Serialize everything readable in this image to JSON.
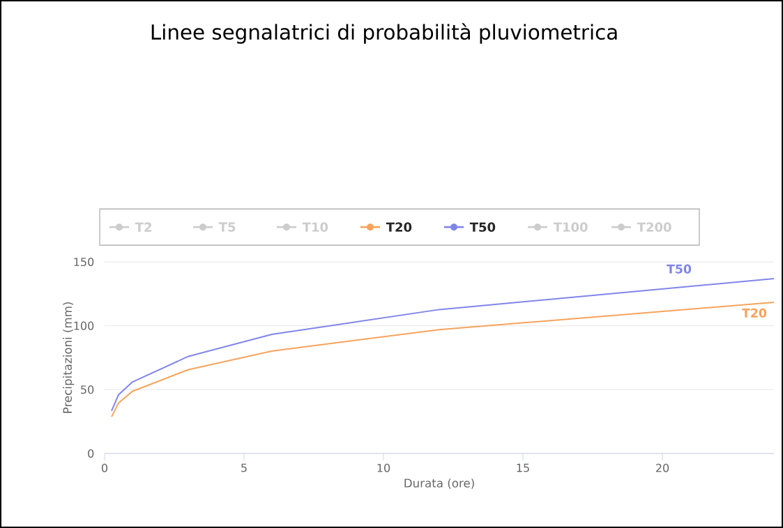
{
  "chart_data": {
    "type": "line",
    "title": "Linee segnalatrici di probabilità pluviometrica",
    "xlabel": "Durata (ore)",
    "ylabel": "Precipitazioni (mm)",
    "x": [
      0.25,
      0.5,
      1,
      3,
      6,
      12,
      24
    ],
    "series": [
      {
        "name": "T2",
        "color": "#cccccc",
        "values": [
          null,
          null,
          null,
          null,
          null,
          null,
          null
        ]
      },
      {
        "name": "T5",
        "color": "#cccccc",
        "values": [
          null,
          null,
          null,
          null,
          null,
          null,
          null
        ]
      },
      {
        "name": "T10",
        "color": "#cccccc",
        "values": [
          null,
          null,
          null,
          null,
          null,
          null,
          null
        ]
      },
      {
        "name": "T20",
        "color": "#f7a35c",
        "values": [
          28.7,
          39.6,
          48.7,
          65.6,
          80.2,
          97,
          118.3
        ]
      },
      {
        "name": "T50",
        "color": "#8085e9",
        "values": [
          33.3,
          46,
          56,
          76,
          93.3,
          112.7,
          136.9
        ]
      },
      {
        "name": "T100",
        "color": "#cccccc",
        "values": [
          null,
          null,
          null,
          null,
          null,
          null,
          null
        ]
      },
      {
        "name": "T200",
        "color": "#cccccc",
        "values": [
          null,
          null,
          null,
          null,
          null,
          null,
          null
        ]
      }
    ],
    "xlim": [
      0,
      24
    ],
    "ylim": [
      0,
      150
    ],
    "xticks": [
      0,
      5,
      10,
      15,
      20
    ],
    "yticks": [
      0,
      50,
      100,
      150
    ],
    "grid": "y",
    "legend": "top",
    "line_style": "solid"
  }
}
